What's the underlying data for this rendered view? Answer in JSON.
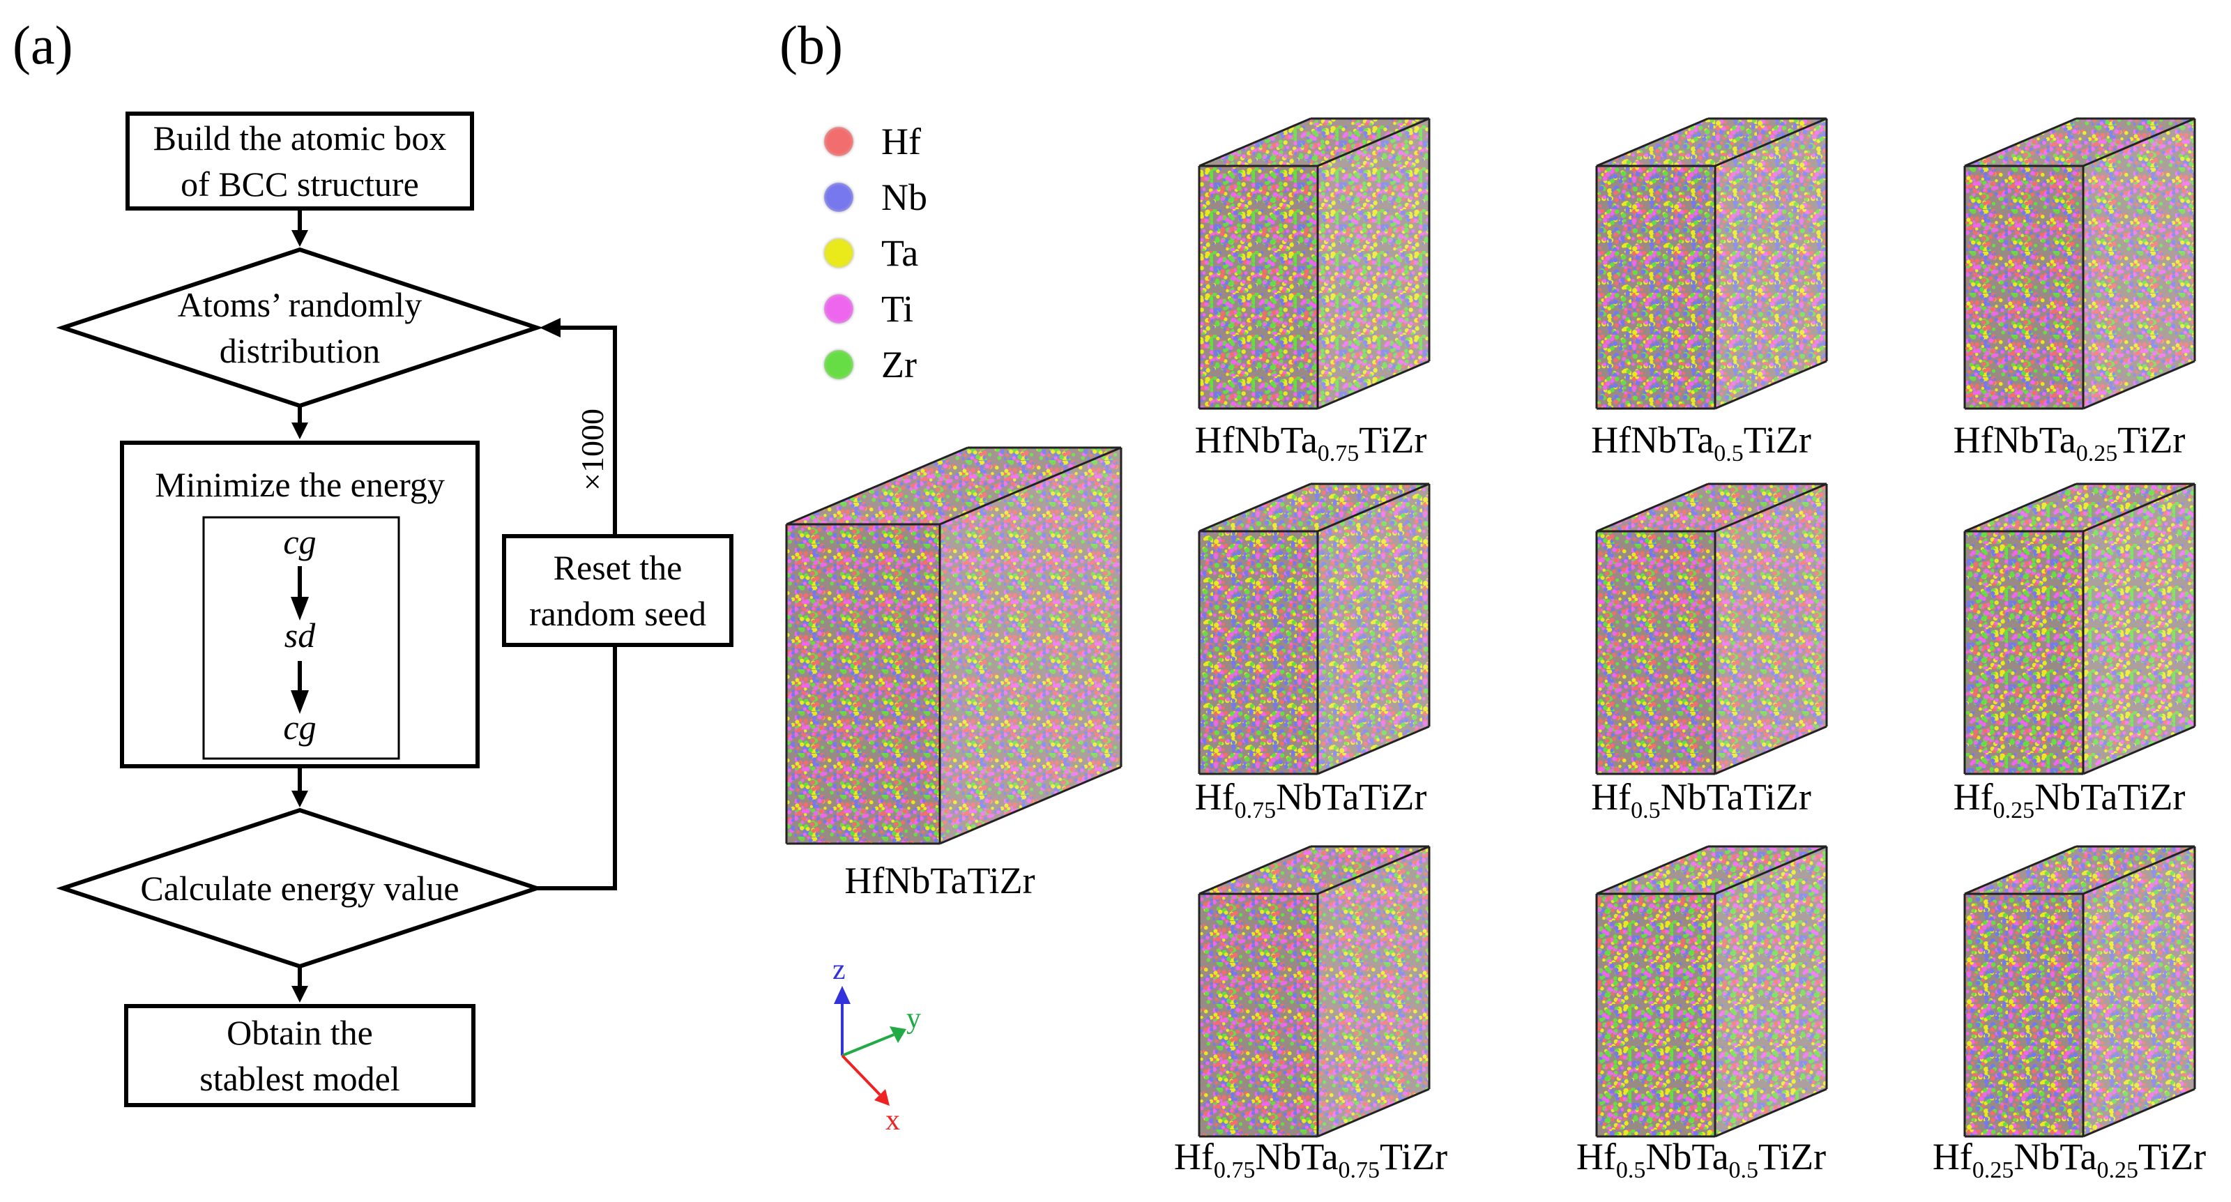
{
  "panel_a": {
    "label": "(a)",
    "nodes": {
      "build": [
        "Build the atomic box",
        "of BCC structure"
      ],
      "random": [
        "Atoms’ randomly",
        "distribution"
      ],
      "minimize_title": "Minimize the energy",
      "steps": [
        "cg",
        "sd",
        "cg"
      ],
      "calculate": "Calculate energy value",
      "obtain": [
        "Obtain the",
        "stablest model"
      ],
      "reset": [
        "Reset the",
        "random seed"
      ]
    },
    "repeat_label": "×1000"
  },
  "panel_b": {
    "label": "(b)",
    "legend": [
      {
        "element": "Hf",
        "color": "#f26d6d"
      },
      {
        "element": "Nb",
        "color": "#7777ee"
      },
      {
        "element": "Ta",
        "color": "#eaea1a"
      },
      {
        "element": "Ti",
        "color": "#ee66ee"
      },
      {
        "element": "Zr",
        "color": "#66dd44"
      }
    ],
    "box_edge_color": "#222222",
    "main_model": "HfNbTaTiZr",
    "models": [
      [
        {
          "t": "HfNbTa"
        },
        {
          "s": "0.75"
        },
        {
          "t": "TiZr"
        }
      ],
      [
        {
          "t": "HfNbTa"
        },
        {
          "s": "0.5"
        },
        {
          "t": "TiZr"
        }
      ],
      [
        {
          "t": "HfNbTa"
        },
        {
          "s": "0.25"
        },
        {
          "t": "TiZr"
        }
      ],
      [
        {
          "t": "Hf"
        },
        {
          "s": "0.75"
        },
        {
          "t": "NbTaTiZr"
        }
      ],
      [
        {
          "t": "Hf"
        },
        {
          "s": "0.5"
        },
        {
          "t": "NbTaTiZr"
        }
      ],
      [
        {
          "t": "Hf"
        },
        {
          "s": "0.25"
        },
        {
          "t": "NbTaTiZr"
        }
      ],
      [
        {
          "t": "Hf"
        },
        {
          "s": "0.75"
        },
        {
          "t": "NbTa"
        },
        {
          "s": "0.75"
        },
        {
          "t": "TiZr"
        }
      ],
      [
        {
          "t": "Hf"
        },
        {
          "s": "0.5"
        },
        {
          "t": "NbTa"
        },
        {
          "s": "0.5"
        },
        {
          "t": "TiZr"
        }
      ],
      [
        {
          "t": "Hf"
        },
        {
          "s": "0.25"
        },
        {
          "t": "NbTa"
        },
        {
          "s": "0.25"
        },
        {
          "t": "TiZr"
        }
      ]
    ],
    "axes": [
      {
        "name": "z",
        "color": "#3333dd"
      },
      {
        "name": "y",
        "color": "#22aa44"
      },
      {
        "name": "x",
        "color": "#ee2222"
      }
    ]
  }
}
